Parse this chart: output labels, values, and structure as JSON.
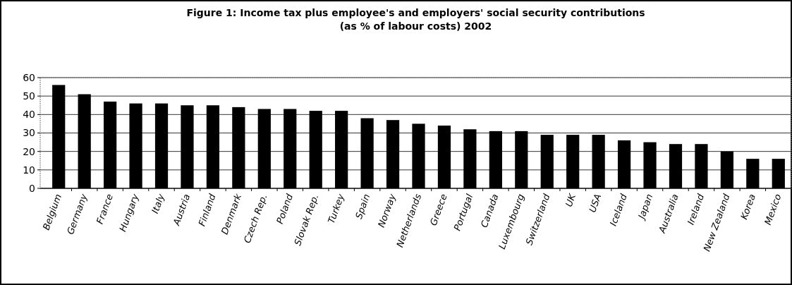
{
  "chart_data": {
    "type": "bar",
    "title": "Figure 1: Income tax plus employee's and employers' social security contributions\n(as % of labour costs) 2002",
    "categories": [
      "Belgium",
      "Germany",
      "France",
      "Hungary",
      "Italy",
      "Austria",
      "Finland",
      "Denmark",
      "Czech Rep.",
      "Poland",
      "Slovak Rep.",
      "Turkey",
      "Spain",
      "Norway",
      "Netherlands",
      "Greece",
      "Portugal",
      "Canada",
      "Luxembourg",
      "Switzerland",
      "UK",
      "USA",
      "Iceland",
      "Japan",
      "Australia",
      "Ireland",
      "New Zealand",
      "Korea",
      "Mexico"
    ],
    "values": [
      56,
      51,
      47,
      46,
      46,
      45,
      45,
      44,
      43,
      43,
      42,
      42,
      38,
      37,
      35,
      34,
      32,
      31,
      31,
      29,
      29,
      29,
      26,
      25,
      24,
      24,
      20,
      16,
      16
    ],
    "color": "#000000",
    "ylim": [
      0,
      60
    ],
    "yticks": [
      0,
      10,
      20,
      30,
      40,
      50,
      60
    ],
    "grid": "y"
  }
}
